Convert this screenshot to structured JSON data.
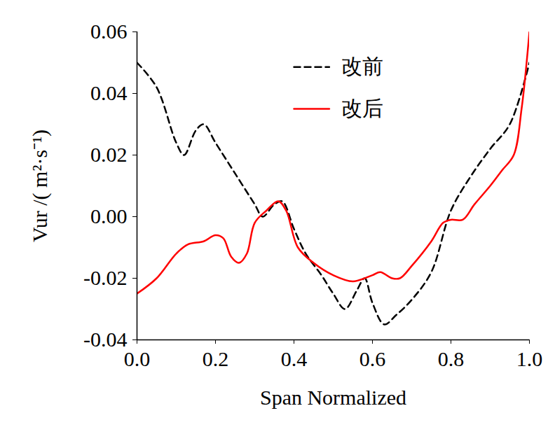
{
  "chart_data": {
    "type": "line",
    "x_label": "Span Normalized",
    "y_label": "Vur /( m²·s⁻¹)",
    "xlim": [
      0,
      1
    ],
    "xticks": [
      {
        "value": 0,
        "label": "0.0"
      },
      0.2,
      0.4,
      0.6,
      0.8,
      {
        "value": 1,
        "label": "1.0"
      }
    ],
    "ylim": [
      -0.04,
      0.06
    ],
    "yticks": [
      -0.04,
      -0.02,
      {
        "value": 0,
        "label": "0.00"
      },
      0.02,
      0.04,
      0.06
    ],
    "grid": false,
    "legend": "top",
    "series": [
      {
        "name": "改前",
        "color": "#000000",
        "line_style": "dashed",
        "x": [
          0,
          0.05,
          0.1,
          0.12,
          0.15,
          0.17,
          0.2,
          0.25,
          0.3,
          0.32,
          0.35,
          0.37,
          0.4,
          0.43,
          0.47,
          0.5,
          0.53,
          0.56,
          0.58,
          0.6,
          0.63,
          0.66,
          0.7,
          0.75,
          0.8,
          0.85,
          0.9,
          0.95,
          1.0
        ],
        "values": [
          0.05,
          0.042,
          0.024,
          0.02,
          0.028,
          0.03,
          0.024,
          0.014,
          0.004,
          0,
          0.004,
          0.005,
          -0.004,
          -0.012,
          -0.019,
          -0.025,
          -0.03,
          -0.024,
          -0.02,
          -0.028,
          -0.035,
          -0.032,
          -0.027,
          -0.018,
          0.002,
          0.013,
          0.022,
          0.03,
          0.05
        ]
      },
      {
        "name": "改后",
        "color": "#ff0000",
        "line_style": "solid",
        "x": [
          0,
          0.05,
          0.1,
          0.13,
          0.17,
          0.2,
          0.22,
          0.24,
          0.26,
          0.28,
          0.3,
          0.33,
          0.36,
          0.38,
          0.41,
          0.45,
          0.5,
          0.55,
          0.6,
          0.62,
          0.65,
          0.67,
          0.7,
          0.75,
          0.78,
          0.8,
          0.83,
          0.86,
          0.9,
          0.93,
          0.96,
          0.98,
          1.0
        ],
        "values": [
          -0.025,
          -0.02,
          -0.012,
          -0.009,
          -0.008,
          -0.006,
          -0.007,
          -0.013,
          -0.015,
          -0.012,
          -0.002,
          0.002,
          0.005,
          0.002,
          -0.01,
          -0.015,
          -0.019,
          -0.021,
          -0.019,
          -0.018,
          -0.02,
          -0.02,
          -0.016,
          -0.008,
          -0.002,
          -0.001,
          -0.001,
          0.004,
          0.01,
          0.015,
          0.02,
          0.035,
          0.06
        ]
      }
    ]
  }
}
